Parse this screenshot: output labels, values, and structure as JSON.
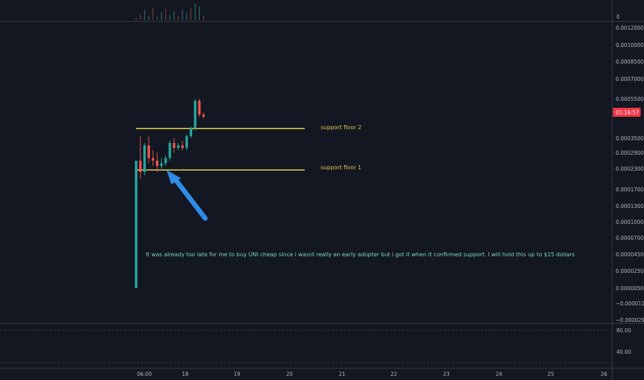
{
  "chart_data": {
    "type": "candlestick",
    "note": "It was already too late for me to buy UNI cheap since i wasnt really an early adopter but i got it when it confirmed support. I will hold this up to $15 dollars",
    "annotations": [
      "support floor 2",
      "support floor 1"
    ],
    "support_levels": [
      0.00039,
      0.00022
    ],
    "price_axis_ticks": [
      "0.00120000",
      "0.00100000",
      "0.00085000",
      "0.00070000",
      "0.00055000",
      "0.00035000",
      "0.00029000",
      "0.00023000",
      "0.00017000",
      "0.00013000",
      "0.00010000",
      "0.00007000",
      "0.00004500",
      "0.00002500",
      "0.00000500",
      "−0.00001100",
      "−0.00002900"
    ],
    "price_axis_ticks_values": [
      0.0012,
      0.001,
      0.00085,
      0.0007,
      0.00055,
      0.00035,
      0.00029,
      0.00023,
      0.00017,
      0.00013,
      0.0001,
      7e-05,
      4.5e-05,
      2.5e-05,
      5e-06,
      -1.1e-05,
      -2.9e-05
    ],
    "current_price_label": "01:16:57",
    "volume_axis_label": "0",
    "indicator_axis_ticks": [
      "80.00",
      "40.00"
    ],
    "time_axis_ticks": [
      "06:00",
      "18",
      "19",
      "20",
      "21",
      "22",
      "23",
      "24",
      "25",
      "26"
    ],
    "candles": [
      {
        "t": 0,
        "o": 5e-06,
        "h": 0.00026,
        "l": 5e-06,
        "c": 0.00026
      },
      {
        "t": 1,
        "o": 0.00026,
        "h": 0.00036,
        "l": 0.0002,
        "c": 0.00022
      },
      {
        "t": 2,
        "o": 0.00022,
        "h": 0.00033,
        "l": 0.00021,
        "c": 0.00032
      },
      {
        "t": 3,
        "o": 0.00032,
        "h": 0.00036,
        "l": 0.00025,
        "c": 0.00027
      },
      {
        "t": 4,
        "o": 0.00027,
        "h": 0.0003,
        "l": 0.00024,
        "c": 0.00026
      },
      {
        "t": 5,
        "o": 0.00026,
        "h": 0.00029,
        "l": 0.00022,
        "c": 0.00024
      },
      {
        "t": 6,
        "o": 0.00024,
        "h": 0.00027,
        "l": 0.00023,
        "c": 0.00025
      },
      {
        "t": 7,
        "o": 0.00025,
        "h": 0.00028,
        "l": 0.00024,
        "c": 0.00027
      },
      {
        "t": 8,
        "o": 0.00027,
        "h": 0.00034,
        "l": 0.00026,
        "c": 0.00033
      },
      {
        "t": 9,
        "o": 0.00033,
        "h": 0.00035,
        "l": 0.00029,
        "c": 0.00031
      },
      {
        "t": 10,
        "o": 0.00031,
        "h": 0.00033,
        "l": 0.0003,
        "c": 0.00032
      },
      {
        "t": 11,
        "o": 0.00032,
        "h": 0.00034,
        "l": 0.0003,
        "c": 0.00031
      },
      {
        "t": 12,
        "o": 0.00031,
        "h": 0.00037,
        "l": 0.0003,
        "c": 0.00036
      },
      {
        "t": 13,
        "o": 0.00036,
        "h": 0.00041,
        "l": 0.00035,
        "c": 0.0004
      },
      {
        "t": 14,
        "o": 0.0004,
        "h": 0.00055,
        "l": 0.00039,
        "c": 0.00054
      },
      {
        "t": 15,
        "o": 0.00054,
        "h": 0.00055,
        "l": 0.00046,
        "c": 0.00047
      },
      {
        "t": 16,
        "o": 0.00047,
        "h": 0.00048,
        "l": 0.00045,
        "c": 0.00046
      }
    ],
    "volume": [
      2,
      6,
      10,
      4,
      12,
      3,
      8,
      11,
      5,
      9,
      4,
      10,
      7,
      12,
      16,
      13,
      4
    ],
    "colors": {
      "background": "#131722",
      "up": "#26a69a",
      "down": "#ef5350",
      "support_line": "#f5e050",
      "arrow": "#2f8be6",
      "price_label_bg": "#f23645",
      "axis_text": "#b2b5be"
    }
  }
}
